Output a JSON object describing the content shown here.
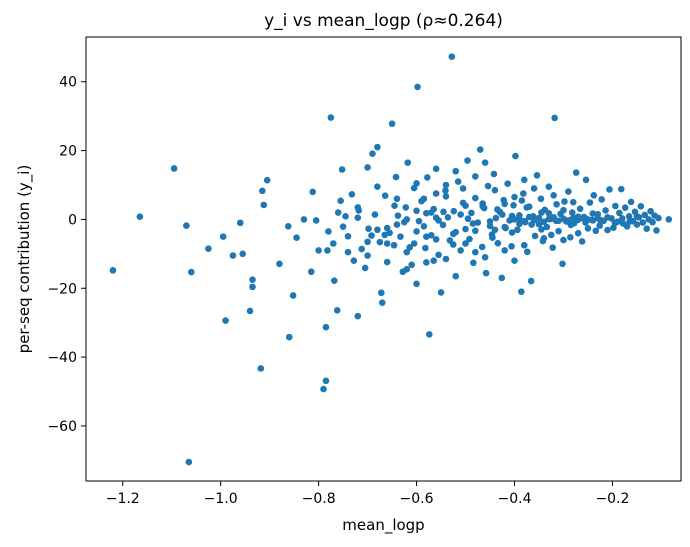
{
  "chart_data": {
    "type": "scatter",
    "title": "y_i vs mean_logp  (ρ≈0.264)",
    "xlabel": "mean_logp",
    "ylabel": "per-seq contribution (y_i)",
    "xlim": [
      -1.275,
      -0.06
    ],
    "ylim": [
      -76,
      53
    ],
    "xticks": [
      -1.2,
      -1.0,
      -0.8,
      -0.6,
      -0.4,
      -0.2
    ],
    "xtick_labels": [
      "−1.2",
      "−1.0",
      "−0.8",
      "−0.6",
      "−0.4",
      "−0.2"
    ],
    "yticks": [
      -60,
      -40,
      -20,
      0,
      20,
      40
    ],
    "ytick_labels": [
      "−60",
      "−40",
      "−20",
      "0",
      "20",
      "40"
    ],
    "grid": false,
    "marker_color": "#1f77b4",
    "points": [
      [
        -1.22,
        -14.8
      ],
      [
        -1.165,
        0.8
      ],
      [
        -1.095,
        14.8
      ],
      [
        -1.07,
        -1.8
      ],
      [
        -1.065,
        -70.5
      ],
      [
        -1.06,
        -15.3
      ],
      [
        -1.025,
        -8.5
      ],
      [
        -0.995,
        -5.0
      ],
      [
        -0.99,
        -29.4
      ],
      [
        -0.975,
        -10.5
      ],
      [
        -0.96,
        -1.0
      ],
      [
        -0.955,
        -10.0
      ],
      [
        -0.94,
        -26.6
      ],
      [
        -0.935,
        -17.5
      ],
      [
        -0.935,
        -19.6
      ],
      [
        -0.918,
        -43.3
      ],
      [
        -0.915,
        8.3
      ],
      [
        -0.912,
        4.2
      ],
      [
        -0.905,
        11.4
      ],
      [
        -0.88,
        -12.9
      ],
      [
        -0.862,
        -2.0
      ],
      [
        -0.86,
        -34.2
      ],
      [
        -0.852,
        -22.1
      ],
      [
        -0.845,
        -5.3
      ],
      [
        -0.83,
        0.0
      ],
      [
        -0.815,
        -15.2
      ],
      [
        -0.812,
        8.0
      ],
      [
        -0.805,
        -0.3
      ],
      [
        -0.8,
        -9.0
      ],
      [
        -0.79,
        -49.3
      ],
      [
        -0.785,
        -46.9
      ],
      [
        -0.785,
        -31.3
      ],
      [
        -0.782,
        -9.0
      ],
      [
        -0.775,
        29.6
      ],
      [
        -0.77,
        -7.0
      ],
      [
        -0.768,
        -17.8
      ],
      [
        -0.762,
        -26.4
      ],
      [
        -0.755,
        5.4
      ],
      [
        -0.752,
        14.5
      ],
      [
        -0.75,
        -2.1
      ],
      [
        -0.745,
        0.9
      ],
      [
        -0.74,
        -4.9
      ],
      [
        -0.732,
        7.3
      ],
      [
        -0.728,
        -12.0
      ],
      [
        -0.72,
        -28.1
      ],
      [
        -0.718,
        2.6
      ],
      [
        -0.712,
        -8.6
      ],
      [
        -0.705,
        -14.1
      ],
      [
        -0.7,
        15.1
      ],
      [
        -0.698,
        -2.7
      ],
      [
        -0.692,
        -4.7
      ],
      [
        -0.69,
        19.1
      ],
      [
        -0.685,
        1.4
      ],
      [
        -0.68,
        21.0
      ],
      [
        -0.675,
        -6.6
      ],
      [
        -0.672,
        -21.3
      ],
      [
        -0.67,
        -24.2
      ],
      [
        -0.664,
        6.9
      ],
      [
        -0.66,
        -12.4
      ],
      [
        -0.655,
        -3.9
      ],
      [
        -0.65,
        27.8
      ],
      [
        -0.646,
        -7.5
      ],
      [
        -0.642,
        12.3
      ],
      [
        -0.638,
        1.1
      ],
      [
        -0.633,
        -5.0
      ],
      [
        -0.628,
        -15.2
      ],
      [
        -0.622,
        3.5
      ],
      [
        -0.618,
        16.5
      ],
      [
        -0.614,
        -8.1
      ],
      [
        -0.61,
        -13.2
      ],
      [
        -0.605,
        9.1
      ],
      [
        -0.6,
        -18.7
      ],
      [
        -0.598,
        38.5
      ],
      [
        -0.595,
        -0.5
      ],
      [
        -0.59,
        5.3
      ],
      [
        -0.585,
        -2.0
      ],
      [
        -0.582,
        -8.3
      ],
      [
        -0.578,
        12.2
      ],
      [
        -0.574,
        -33.4
      ],
      [
        -0.57,
        -4.6
      ],
      [
        -0.565,
        3.0
      ],
      [
        -0.56,
        14.7
      ],
      [
        -0.555,
        -10.3
      ],
      [
        -0.55,
        -21.2
      ],
      [
        -0.546,
        -1.6
      ],
      [
        -0.541,
        8.4
      ],
      [
        -0.536,
        0.6
      ],
      [
        -0.532,
        -6.1
      ],
      [
        -0.528,
        47.3
      ],
      [
        -0.524,
        2.4
      ],
      [
        -0.52,
        -3.7
      ],
      [
        -0.515,
        11.0
      ],
      [
        -0.51,
        -9.0
      ],
      [
        -0.505,
        4.8
      ],
      [
        -0.5,
        -2.8
      ],
      [
        -0.496,
        17.1
      ],
      [
        -0.492,
        -5.7
      ],
      [
        -0.488,
        1.9
      ],
      [
        -0.484,
        -12.6
      ],
      [
        -0.48,
        6.2
      ],
      [
        -0.475,
        -0.9
      ],
      [
        -0.47,
        20.3
      ],
      [
        -0.466,
        -8.0
      ],
      [
        -0.462,
        3.3
      ],
      [
        -0.458,
        -15.6
      ],
      [
        -0.454,
        9.7
      ],
      [
        -0.45,
        -1.9
      ],
      [
        -0.446,
        -4.4
      ],
      [
        -0.442,
        13.2
      ],
      [
        -0.438,
        0.4
      ],
      [
        -0.434,
        -6.9
      ],
      [
        -0.43,
        2.2
      ],
      [
        -0.426,
        -17.0
      ],
      [
        -0.422,
        5.6
      ],
      [
        -0.418,
        -2.5
      ],
      [
        -0.414,
        10.4
      ],
      [
        -0.41,
        -0.3
      ],
      [
        -0.406,
        -7.8
      ],
      [
        -0.402,
        4.1
      ],
      [
        -0.398,
        18.4
      ],
      [
        -0.394,
        -3.0
      ],
      [
        -0.39,
        1.2
      ],
      [
        -0.386,
        -21.0
      ],
      [
        -0.382,
        7.5
      ],
      [
        -0.378,
        -0.8
      ],
      [
        -0.374,
        -9.4
      ],
      [
        -0.37,
        3.7
      ],
      [
        -0.366,
        -17.9
      ],
      [
        -0.362,
        0.9
      ],
      [
        -0.358,
        -4.8
      ],
      [
        -0.354,
        12.8
      ],
      [
        -0.35,
        -1.4
      ],
      [
        -0.346,
        6.0
      ],
      [
        -0.342,
        -6.3
      ],
      [
        -0.338,
        2.8
      ],
      [
        -0.334,
        -2.2
      ],
      [
        -0.33,
        9.5
      ],
      [
        -0.326,
        0.1
      ],
      [
        -0.322,
        -8.2
      ],
      [
        -0.318,
        29.5
      ],
      [
        -0.314,
        4.4
      ],
      [
        -0.31,
        -3.4
      ],
      [
        -0.306,
        1.6
      ],
      [
        -0.302,
        -12.9
      ],
      [
        -0.298,
        5.2
      ],
      [
        -0.294,
        -0.6
      ],
      [
        -0.29,
        8.1
      ],
      [
        -0.286,
        -5.2
      ],
      [
        -0.282,
        2.0
      ],
      [
        -0.278,
        -1.1
      ],
      [
        -0.274,
        13.6
      ],
      [
        -0.27,
        -4.0
      ],
      [
        -0.266,
        3.1
      ],
      [
        -0.262,
        -6.4
      ],
      [
        -0.258,
        0.7
      ],
      [
        -0.254,
        11.5
      ],
      [
        -0.25,
        -2.6
      ],
      [
        -0.246,
        4.9
      ],
      [
        -0.242,
        -0.2
      ],
      [
        -0.238,
        7.0
      ],
      [
        -0.234,
        -3.3
      ],
      [
        -0.23,
        1.5
      ],
      [
        -0.226,
        -1.8
      ],
      [
        -0.222,
        5.8
      ],
      [
        -0.218,
        -0.4
      ],
      [
        -0.214,
        2.6
      ],
      [
        -0.21,
        -3.1
      ],
      [
        -0.206,
        8.7
      ],
      [
        -0.202,
        0.3
      ],
      [
        -0.198,
        -2.4
      ],
      [
        -0.194,
        3.9
      ],
      [
        -0.19,
        -0.7
      ],
      [
        -0.186,
        1.9
      ],
      [
        -0.182,
        8.8
      ],
      [
        -0.178,
        -1.2
      ],
      [
        -0.174,
        3.4
      ],
      [
        -0.17,
        -2.0
      ],
      [
        -0.166,
        0.9
      ],
      [
        -0.162,
        5.1
      ],
      [
        -0.158,
        -0.5
      ],
      [
        -0.154,
        2.2
      ],
      [
        -0.15,
        -1.5
      ],
      [
        -0.146,
        0.6
      ],
      [
        -0.142,
        3.8
      ],
      [
        -0.138,
        -0.9
      ],
      [
        -0.134,
        1.3
      ],
      [
        -0.13,
        -2.7
      ],
      [
        -0.126,
        0.0
      ],
      [
        -0.122,
        2.4
      ],
      [
        -0.118,
        -0.8
      ],
      [
        -0.114,
        1.1
      ],
      [
        -0.11,
        -3.2
      ],
      [
        -0.106,
        0.4
      ],
      [
        -0.085,
        0.0
      ],
      [
        -0.57,
        2.0
      ],
      [
        -0.555,
        -0.3
      ],
      [
        -0.54,
        6.7
      ],
      [
        -0.525,
        -4.2
      ],
      [
        -0.51,
        1.4
      ],
      [
        -0.495,
        0.2
      ],
      [
        -0.48,
        -3.3
      ],
      [
        -0.465,
        4.6
      ],
      [
        -0.45,
        -0.6
      ],
      [
        -0.435,
        2.9
      ],
      [
        -0.42,
        -2.2
      ],
      [
        -0.405,
        1.0
      ],
      [
        -0.39,
        -1.3
      ],
      [
        -0.375,
        3.5
      ],
      [
        -0.36,
        0.5
      ],
      [
        -0.345,
        -2.9
      ],
      [
        -0.33,
        1.8
      ],
      [
        -0.315,
        -0.4
      ],
      [
        -0.3,
        2.7
      ],
      [
        -0.285,
        -1.6
      ],
      [
        -0.27,
        0.8
      ],
      [
        -0.255,
        -0.9
      ],
      [
        -0.24,
        1.7
      ],
      [
        -0.225,
        -0.2
      ],
      [
        -0.21,
        0.6
      ],
      [
        -0.195,
        -1.0
      ],
      [
        -0.18,
        0.3
      ],
      [
        -0.165,
        -0.6
      ],
      [
        -0.15,
        0.9
      ],
      [
        -0.4,
        0.0
      ],
      [
        -0.39,
        0.3
      ],
      [
        -0.38,
        -0.5
      ],
      [
        -0.37,
        0.7
      ],
      [
        -0.36,
        -0.2
      ],
      [
        -0.35,
        0.4
      ],
      [
        -0.34,
        -0.7
      ],
      [
        -0.33,
        0.1
      ],
      [
        -0.32,
        0.6
      ],
      [
        -0.31,
        -0.4
      ],
      [
        -0.3,
        0.2
      ],
      [
        -0.29,
        -0.3
      ],
      [
        -0.28,
        0.5
      ],
      [
        -0.27,
        -0.1
      ],
      [
        -0.26,
        0.3
      ],
      [
        -0.25,
        0.0
      ],
      [
        -0.24,
        -0.3
      ],
      [
        -0.23,
        0.4
      ],
      [
        -0.62,
        -9.5
      ],
      [
        -0.6,
        10.5
      ],
      [
        -0.58,
        -5.0
      ],
      [
        -0.56,
        7.5
      ],
      [
        -0.54,
        -11.5
      ],
      [
        -0.52,
        14.0
      ],
      [
        -0.5,
        -7.0
      ],
      [
        -0.48,
        12.5
      ],
      [
        -0.46,
        -11.0
      ],
      [
        -0.44,
        8.5
      ],
      [
        -0.42,
        -9.0
      ],
      [
        -0.4,
        6.5
      ],
      [
        -0.38,
        -7.5
      ],
      [
        -0.36,
        9.0
      ],
      [
        -0.34,
        -5.5
      ],
      [
        -0.32,
        7.0
      ],
      [
        -0.3,
        -6.0
      ],
      [
        -0.28,
        5.0
      ],
      [
        -0.72,
        3.5
      ],
      [
        -0.7,
        -10.5
      ],
      [
        -0.68,
        9.5
      ],
      [
        -0.66,
        -2.5
      ],
      [
        -0.64,
        6.0
      ],
      [
        -0.62,
        -14.5
      ],
      [
        -0.6,
        2.5
      ],
      [
        -0.58,
        -12.5
      ],
      [
        -0.56,
        0.5
      ],
      [
        -0.54,
        10.0
      ],
      [
        -0.52,
        -16.5
      ],
      [
        -0.5,
        4.0
      ],
      [
        -0.48,
        -9.5
      ],
      [
        -0.46,
        16.5
      ],
      [
        -0.44,
        -3.0
      ],
      [
        -0.42,
        4.5
      ],
      [
        -0.4,
        -12.0
      ],
      [
        -0.38,
        11.5
      ],
      [
        -0.665,
        -4.5
      ],
      [
        -0.645,
        4.0
      ],
      [
        -0.625,
        -0.8
      ],
      [
        -0.605,
        -7.0
      ],
      [
        -0.585,
        6.0
      ],
      [
        -0.565,
        -12.0
      ],
      [
        -0.545,
        2.2
      ],
      [
        -0.525,
        -7.3
      ],
      [
        -0.505,
        9.0
      ],
      [
        -0.485,
        -1.2
      ],
      [
        -0.465,
        3.8
      ],
      [
        -0.445,
        -5.3
      ],
      [
        -0.425,
        1.4
      ],
      [
        -0.405,
        -3.8
      ],
      [
        -0.385,
        5.5
      ],
      [
        -0.365,
        -1.5
      ],
      [
        -0.345,
        2.0
      ],
      [
        -0.325,
        -4.5
      ],
      [
        -0.78,
        -3.5
      ],
      [
        -0.76,
        2.0
      ],
      [
        -0.74,
        -9.5
      ],
      [
        -0.72,
        0.5
      ],
      [
        -0.7,
        -6.5
      ],
      [
        -0.68,
        -3.0
      ],
      [
        -0.66,
        -7.0
      ],
      [
        -0.64,
        -1.5
      ],
      [
        -0.62,
        0.0
      ],
      [
        -0.6,
        -3.5
      ],
      [
        -0.58,
        1.8
      ],
      [
        -0.56,
        -5.8
      ]
    ]
  }
}
